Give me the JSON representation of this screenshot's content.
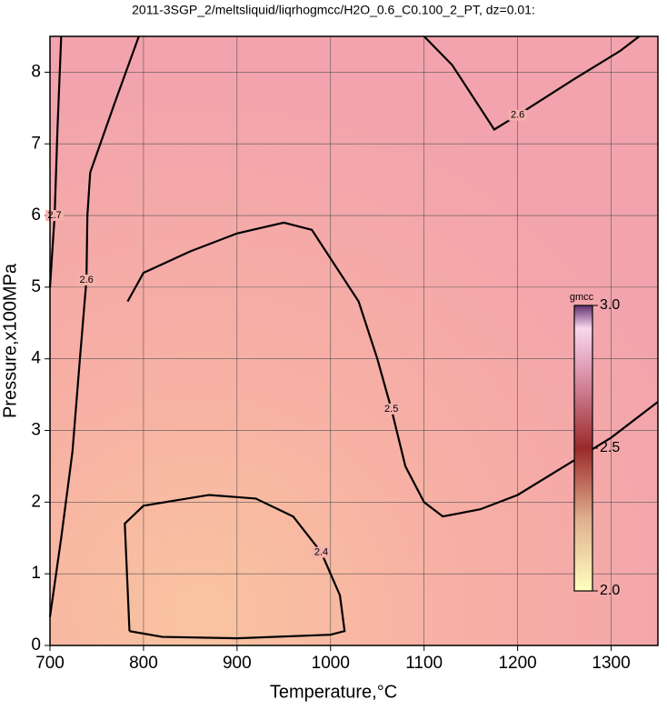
{
  "chart_data": {
    "type": "contour",
    "title": "2011-3SGP_2/meltsliquid/liqrhogmcc/H2O_0.6_C0.100_2_PT, dz=0.01:",
    "x_label": "Temperature,°C",
    "y_label": "Pressure,x100MPa",
    "xlim": [
      700,
      1350
    ],
    "ylim": [
      0,
      8.5
    ],
    "xticks": [
      700,
      800,
      900,
      1000,
      1100,
      1200,
      1300
    ],
    "yticks": [
      0,
      1,
      2,
      3,
      4,
      5,
      6,
      7,
      8
    ],
    "grid": true,
    "contours": [
      {
        "level": 2.4,
        "x": [
          785,
          780,
          800,
          870,
          920,
          960,
          990,
          1010,
          1015,
          1000,
          900,
          820,
          785
        ],
        "y": [
          0.2,
          1.7,
          1.95,
          2.1,
          2.05,
          1.8,
          1.3,
          0.7,
          0.2,
          0.15,
          0.1,
          0.12,
          0.2
        ]
      },
      {
        "level": 2.5,
        "x": [
          783,
          800,
          850,
          900,
          950,
          980,
          1000,
          1030,
          1050,
          1065,
          1080,
          1100,
          1120,
          1160,
          1200,
          1250,
          1300,
          1350
        ],
        "y": [
          4.8,
          5.2,
          5.5,
          5.75,
          5.9,
          5.8,
          5.4,
          4.8,
          4.0,
          3.3,
          2.5,
          2.0,
          1.8,
          1.9,
          2.1,
          2.5,
          2.9,
          3.4
        ]
      },
      {
        "level": 2.6,
        "x": [
          1100,
          1130,
          1160,
          1175,
          1200,
          1260,
          1310,
          1330
        ],
        "y": [
          8.5,
          8.1,
          7.5,
          7.2,
          7.4,
          7.9,
          8.3,
          8.5
        ]
      },
      {
        "level": 2.6,
        "x": [
          795,
          770,
          743,
          740,
          739,
          732,
          724,
          712,
          700
        ],
        "y": [
          8.5,
          7.6,
          6.6,
          6.0,
          5.1,
          4.0,
          2.7,
          1.5,
          0.4
        ]
      },
      {
        "level": 2.7,
        "x": [
          712,
          708,
          705,
          702,
          700
        ],
        "y": [
          8.5,
          7.2,
          6.0,
          5.4,
          5.0
        ]
      }
    ],
    "colorbar": {
      "label": "gmcc",
      "lim": [
        2.0,
        3.0
      ],
      "ticks": [
        {
          "value": 3,
          "label": "3.0"
        },
        {
          "value": 2.5,
          "label": "2.5"
        },
        {
          "value": 2,
          "label": "2.0"
        }
      ]
    }
  }
}
